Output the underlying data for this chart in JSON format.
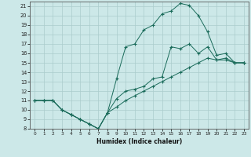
{
  "xlabel": "Humidex (Indice chaleur)",
  "background_color": "#cce8e8",
  "grid_color": "#aacccc",
  "line_color": "#1a6b5a",
  "xlim": [
    -0.5,
    23.5
  ],
  "ylim": [
    8,
    21.5
  ],
  "xticks": [
    0,
    1,
    2,
    3,
    4,
    5,
    6,
    7,
    8,
    9,
    10,
    11,
    12,
    13,
    14,
    15,
    16,
    17,
    18,
    19,
    20,
    21,
    22,
    23
  ],
  "yticks": [
    8,
    9,
    10,
    11,
    12,
    13,
    14,
    15,
    16,
    17,
    18,
    19,
    20,
    21
  ],
  "line1_y": [
    11,
    11,
    11,
    10,
    9.5,
    9,
    8.5,
    8,
    9.7,
    13.3,
    16.7,
    17.0,
    18.5,
    19.0,
    20.2,
    20.5,
    21.3,
    21.1,
    20.0,
    18.3,
    15.8,
    16.0,
    15.0,
    15.0
  ],
  "line2_y": [
    11,
    11,
    11,
    10,
    9.5,
    9,
    8.5,
    8,
    9.7,
    11.2,
    12.0,
    12.2,
    12.5,
    13.3,
    13.5,
    16.7,
    16.5,
    17.0,
    16.0,
    16.7,
    15.3,
    15.5,
    15.0,
    15.0
  ],
  "line3_y": [
    11,
    11,
    11,
    10,
    9.5,
    9,
    8.5,
    8,
    9.7,
    10.3,
    11.0,
    11.5,
    12.0,
    12.5,
    13.0,
    13.5,
    14.0,
    14.5,
    15.0,
    15.5,
    15.3,
    15.3,
    15.0,
    15.0
  ]
}
